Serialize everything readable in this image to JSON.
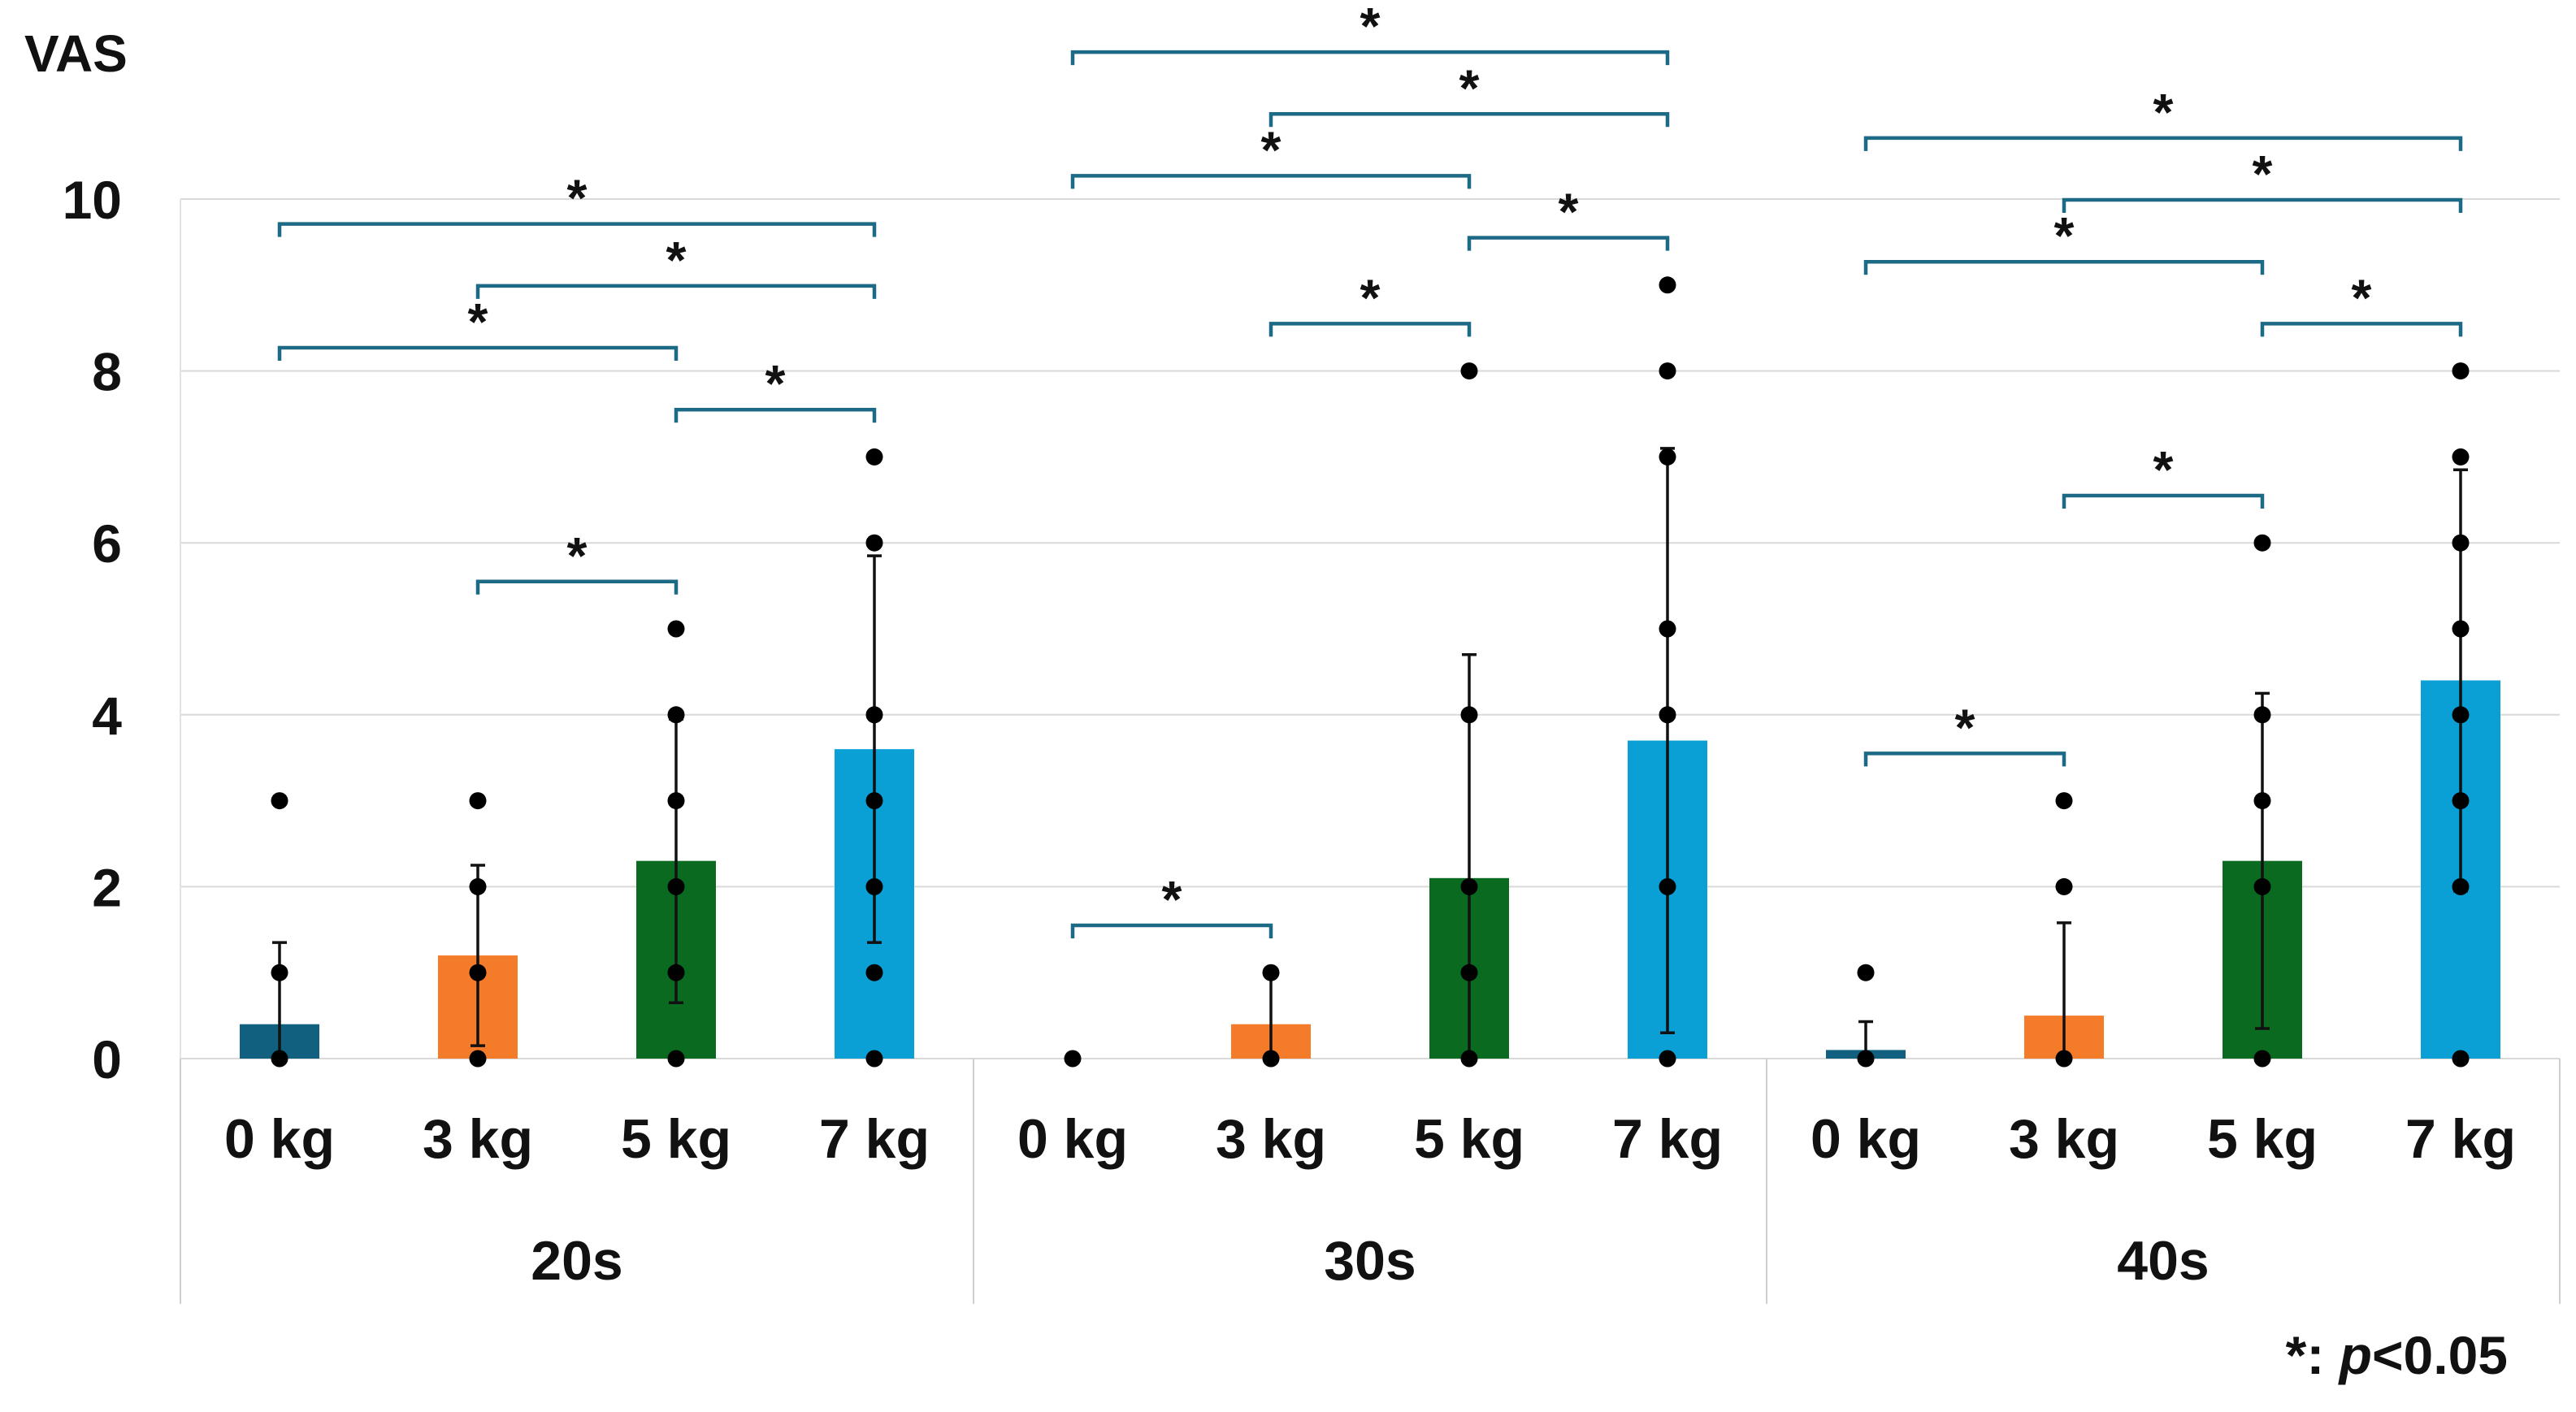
{
  "chart_data": {
    "type": "bar",
    "ylabel": "VAS",
    "ylim": [
      0,
      10
    ],
    "yticks": [
      0,
      2,
      4,
      6,
      8,
      10
    ],
    "grid": true,
    "footnote": {
      "prefix": "*: ",
      "italic": "p",
      "suffix": "<0.05"
    },
    "categories": [
      "0 kg",
      "3 kg",
      "5 kg",
      "7 kg"
    ],
    "category_colors": [
      "#11607f",
      "#f47b2a",
      "#0a6a1f",
      "#0aa0d6"
    ],
    "groups": [
      {
        "name": "20s",
        "values": [
          0.4,
          1.2,
          2.3,
          3.6
        ],
        "sd": [
          0.95,
          1.05,
          1.65,
          2.25
        ],
        "points": [
          [
            0,
            1,
            3
          ],
          [
            0,
            1,
            2,
            3
          ],
          [
            0,
            1,
            2,
            3,
            4,
            5
          ],
          [
            0,
            1,
            2,
            3,
            4,
            6,
            7
          ]
        ],
        "significance": [
          {
            "from": 0,
            "to": 3,
            "label": "*"
          },
          {
            "from": 0,
            "to": 2,
            "label": "*"
          },
          {
            "from": 1,
            "to": 3,
            "label": "*"
          },
          {
            "from": 2,
            "to": 3,
            "label": "*"
          },
          {
            "from": 1,
            "to": 2,
            "label": "*"
          }
        ]
      },
      {
        "name": "30s",
        "values": [
          0.0,
          0.4,
          2.1,
          3.7
        ],
        "sd": [
          0.0,
          0.6,
          2.6,
          3.4
        ],
        "points": [
          [
            0
          ],
          [
            0,
            1
          ],
          [
            0,
            1,
            2,
            4,
            8
          ],
          [
            0,
            2,
            4,
            5,
            7,
            8,
            9
          ]
        ],
        "significance": [
          {
            "from": 0,
            "to": 3,
            "label": "*"
          },
          {
            "from": 0,
            "to": 2,
            "label": "*"
          },
          {
            "from": 1,
            "to": 3,
            "label": "*"
          },
          {
            "from": 2,
            "to": 3,
            "label": "*"
          },
          {
            "from": 1,
            "to": 2,
            "label": "*"
          },
          {
            "from": 0,
            "to": 1,
            "label": "*"
          }
        ]
      },
      {
        "name": "40s",
        "values": [
          0.1,
          0.5,
          2.3,
          4.4
        ],
        "sd": [
          0.33,
          1.08,
          1.95,
          2.45
        ],
        "points": [
          [
            0,
            1
          ],
          [
            0,
            2,
            3
          ],
          [
            0,
            2,
            3,
            4,
            6
          ],
          [
            0,
            2,
            3,
            4,
            5,
            6,
            7,
            8
          ]
        ],
        "significance": [
          {
            "from": 0,
            "to": 3,
            "label": "*"
          },
          {
            "from": 0,
            "to": 2,
            "label": "*"
          },
          {
            "from": 1,
            "to": 3,
            "label": "*"
          },
          {
            "from": 2,
            "to": 3,
            "label": "*"
          },
          {
            "from": 1,
            "to": 2,
            "label": "*"
          },
          {
            "from": 0,
            "to": 1,
            "label": "*"
          }
        ]
      }
    ]
  }
}
